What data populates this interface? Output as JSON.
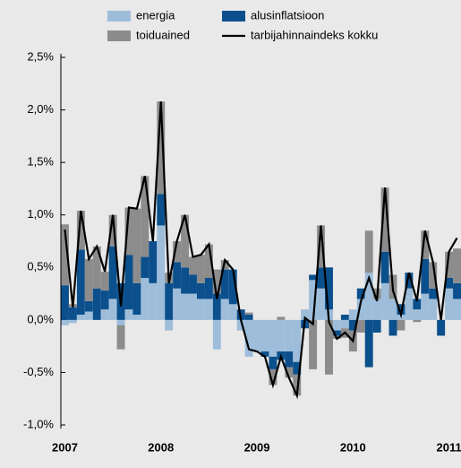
{
  "chart_data": {
    "type": "stacked-bar-line",
    "categories": [
      "2007",
      null,
      null,
      null,
      null,
      null,
      null,
      null,
      null,
      null,
      null,
      null,
      "2008",
      null,
      null,
      null,
      null,
      null,
      null,
      null,
      null,
      null,
      null,
      null,
      "2009",
      null,
      null,
      null,
      null,
      null,
      null,
      null,
      null,
      null,
      null,
      null,
      "2010",
      null,
      null,
      null,
      null,
      null,
      null,
      null,
      null,
      null,
      null,
      null,
      "2011",
      null
    ],
    "series": [
      {
        "name": "energia",
        "color": "#9dbdda",
        "values": [
          -0.05,
          -0.03,
          0.05,
          0.08,
          0.0,
          0.1,
          0.2,
          -0.05,
          0.1,
          0.05,
          0.4,
          0.35,
          0.9,
          -0.1,
          0.3,
          0.25,
          0.25,
          0.2,
          0.2,
          -0.28,
          0.2,
          0.15,
          -0.1,
          -0.35,
          -0.3,
          -0.3,
          -0.35,
          -0.3,
          -0.3,
          -0.4,
          0.1,
          0.38,
          0.3,
          0.1,
          -0.1,
          -0.08,
          0.1,
          0.2,
          0.45,
          0.2,
          0.35,
          0.2,
          0.05,
          0.3,
          0.1,
          0.25,
          0.2,
          0.0,
          0.3,
          0.2
        ]
      },
      {
        "name": "alusinflatsioon",
        "color": "#0b4f8c",
        "values": [
          0.33,
          0.12,
          0.62,
          0.1,
          0.3,
          0.18,
          0.5,
          0.35,
          0.52,
          0.3,
          0.2,
          0.4,
          0.3,
          0.35,
          0.25,
          0.25,
          0.18,
          0.15,
          0.2,
          0.25,
          0.28,
          0.33,
          0.1,
          0.05,
          0.0,
          -0.05,
          -0.12,
          -0.08,
          -0.15,
          -0.12,
          -0.08,
          0.05,
          0.2,
          0.4,
          -0.05,
          0.05,
          -0.1,
          0.1,
          -0.45,
          -0.12,
          0.3,
          -0.15,
          0.1,
          0.15,
          0.1,
          0.33,
          0.1,
          -0.15,
          0.1,
          0.15
        ]
      },
      {
        "name": "toiduained",
        "color": "#8c8c8c",
        "values": [
          0.58,
          0.03,
          0.37,
          0.4,
          0.4,
          0.18,
          0.3,
          -0.23,
          0.45,
          0.71,
          0.77,
          0.0,
          0.88,
          0.1,
          0.2,
          0.5,
          0.17,
          0.27,
          0.32,
          0.23,
          0.09,
          0.0,
          0.0,
          0.02,
          0.0,
          0.0,
          -0.15,
          0.03,
          -0.1,
          -0.2,
          0.0,
          -0.47,
          0.4,
          -0.52,
          -0.03,
          -0.09,
          -0.2,
          -0.12,
          0.4,
          0.1,
          0.61,
          0.23,
          -0.1,
          0.0,
          -0.02,
          0.27,
          0.25,
          0.0,
          0.25,
          0.33
        ]
      }
    ],
    "line": {
      "name": "tarbijahinnaindeks kokku",
      "color": "#000000",
      "values": [
        0.86,
        0.12,
        1.04,
        0.58,
        0.7,
        0.46,
        1.0,
        0.13,
        1.07,
        1.06,
        1.37,
        0.75,
        2.08,
        0.35,
        0.75,
        1.0,
        0.6,
        0.62,
        0.72,
        0.2,
        0.57,
        0.48,
        0.0,
        -0.28,
        -0.3,
        -0.35,
        -0.62,
        -0.35,
        -0.55,
        -0.72,
        0.02,
        -0.04,
        0.9,
        -0.02,
        -0.18,
        -0.12,
        -0.2,
        0.18,
        0.4,
        0.18,
        1.26,
        0.28,
        0.05,
        0.45,
        0.18,
        0.85,
        0.55,
        0.0,
        0.65,
        0.78
      ]
    },
    "ylim": [
      -1.0,
      2.5
    ],
    "yticks": [
      {
        "value": -1.0,
        "label": "-1,0%"
      },
      {
        "value": -0.5,
        "label": "-0,5%"
      },
      {
        "value": 0.0,
        "label": "0,0%"
      },
      {
        "value": 0.5,
        "label": "0,5%"
      },
      {
        "value": 1.0,
        "label": "1,0%"
      },
      {
        "value": 1.5,
        "label": "1,5%"
      },
      {
        "value": 2.0,
        "label": "2,0%"
      },
      {
        "value": 2.5,
        "label": "2,5%"
      }
    ],
    "legend": "top"
  }
}
